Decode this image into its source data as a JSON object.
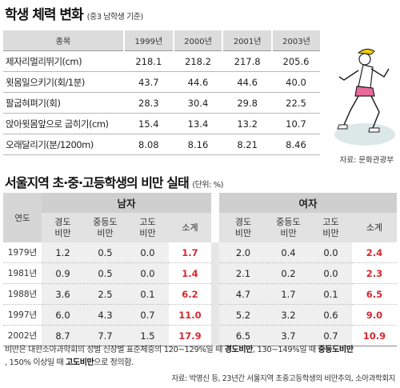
{
  "fitness": {
    "title": "학생 체력 변화",
    "subtitle": "(중3 남학생 기준)",
    "header": [
      "종목",
      "1999년",
      "2000년",
      "2001년",
      "2003년"
    ],
    "rows": [
      {
        "label": "제자리멀리뛰기(cm)",
        "values": [
          "218.1",
          "218.2",
          "217.8",
          "205.6"
        ]
      },
      {
        "label": "윗몸일으키기(회/1분)",
        "values": [
          "43.7",
          "44.6",
          "44.6",
          "40.0"
        ]
      },
      {
        "label": "팔굽혀펴기(회)",
        "values": [
          "28.3",
          "30.4",
          "29.8",
          "22.5"
        ]
      },
      {
        "label": "앉아윗몸앞으로 굽히기(cm)",
        "values": [
          "15.4",
          "13.4",
          "13.2",
          "10.7"
        ]
      },
      {
        "label": "오래달리기(분/1200m)",
        "values": [
          "8.08",
          "8.16",
          "8.21",
          "8.46"
        ]
      }
    ],
    "source": "자료: 문화관광부"
  },
  "obesity": {
    "title": "서울지역 초·중·고등학생의 비만 실태",
    "subtitle": "(단위: %)",
    "year_header": "연도",
    "male_header": "남자",
    "female_header": "여자",
    "sub_headers": [
      {
        "line1": "경도",
        "line2": "비만"
      },
      {
        "line1": "중등도",
        "line2": "비만"
      },
      {
        "line1": "고도",
        "line2": "비만"
      },
      {
        "line1": "소계",
        "line2": ""
      }
    ],
    "rows": [
      {
        "year": "1979년",
        "male": [
          "1.2",
          "0.5",
          "0.0",
          "1.7"
        ],
        "female": [
          "2.0",
          "0.4",
          "0.0",
          "2.4"
        ]
      },
      {
        "year": "1981년",
        "male": [
          "0.9",
          "0.5",
          "0.0",
          "1.4"
        ],
        "female": [
          "2.1",
          "0.2",
          "0.0",
          "2.3"
        ]
      },
      {
        "year": "1988년",
        "male": [
          "3.6",
          "2.5",
          "0.1",
          "6.2"
        ],
        "female": [
          "4.7",
          "1.7",
          "0.1",
          "6.5"
        ]
      },
      {
        "year": "1997년",
        "male": [
          "6.0",
          "4.3",
          "0.7",
          "11.0"
        ],
        "female": [
          "5.2",
          "3.2",
          "0.6",
          "9.0"
        ]
      },
      {
        "year": "2002년",
        "male": [
          "8.7",
          "7.7",
          "1.5",
          "17.9"
        ],
        "female": [
          "6.5",
          "3.7",
          "0.7",
          "10.9"
        ]
      }
    ],
    "note": {
      "p1": "비만은 대한소아과학회의 성별 신장별 표준체중의 120~129%일 때 ",
      "b1": "경도비만",
      "p2": ", 130~149%일 때 ",
      "b2": "중등도비만",
      "p3": ", 150% 이상일 때 ",
      "b3": "고도비만",
      "p4": "으로 정의함."
    },
    "source": "자료: 박영신 등, 23년간 서울지역 초중고등학생의 비만추의, 소아과학회지"
  },
  "colors": {
    "accent_red": "#d6282e",
    "header_gray": "#dcdcdc"
  }
}
